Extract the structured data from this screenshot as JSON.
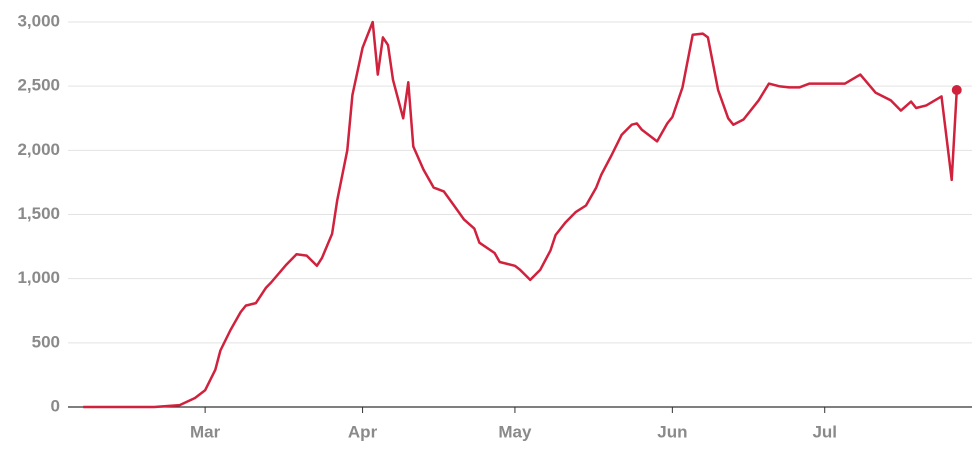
{
  "chart_data": {
    "type": "line",
    "x": [
      0,
      14,
      19,
      22,
      24,
      26,
      27,
      29,
      31,
      32,
      34,
      36,
      37,
      40,
      42,
      44,
      46,
      47,
      49,
      50,
      52,
      53,
      55,
      57,
      58,
      59,
      60,
      61,
      63,
      64,
      65,
      67,
      69,
      71,
      73,
      75,
      77,
      78,
      81,
      82,
      85,
      86,
      88,
      90,
      92,
      93,
      95,
      97,
      99,
      101,
      102,
      104,
      106,
      108,
      109,
      110,
      113,
      115,
      116,
      118,
      120,
      122,
      123,
      125,
      127,
      128,
      130,
      133,
      135,
      137,
      139,
      141,
      143,
      147,
      150,
      153,
      156,
      159,
      161,
      163,
      164,
      166,
      169,
      171,
      172
    ],
    "series": [
      {
        "color": "#d0213d",
        "values": [
          0,
          0,
          15,
          70,
          130,
          290,
          440,
          600,
          740,
          790,
          810,
          930,
          970,
          1110,
          1190,
          1180,
          1100,
          1160,
          1350,
          1610,
          2000,
          2430,
          2800,
          3000,
          2590,
          2880,
          2820,
          2550,
          2250,
          2530,
          2030,
          1850,
          1710,
          1680,
          1570,
          1460,
          1390,
          1280,
          1200,
          1130,
          1100,
          1070,
          990,
          1070,
          1220,
          1340,
          1440,
          1520,
          1570,
          1710,
          1810,
          1960,
          2120,
          2200,
          2210,
          2160,
          2070,
          2210,
          2260,
          2490,
          2900,
          2910,
          2880,
          2470,
          2250,
          2200,
          2240,
          2390,
          2520,
          2500,
          2490,
          2490,
          2520,
          2520,
          2520,
          2590,
          2450,
          2390,
          2310,
          2380,
          2330,
          2350,
          2420,
          1770,
          2470
        ]
      }
    ],
    "xlim": [
      -3,
      175
    ],
    "xticks": [
      {
        "value": 24,
        "label": "Mar"
      },
      {
        "value": 55,
        "label": "Apr"
      },
      {
        "value": 85,
        "label": "May"
      },
      {
        "value": 116,
        "label": "Jun"
      },
      {
        "value": 146,
        "label": "Jul"
      }
    ],
    "ylim": [
      0,
      3000
    ],
    "yticks": [
      0,
      500,
      {
        "value": 1000,
        "label": "1,000"
      },
      {
        "value": 1500,
        "label": "1,500"
      },
      {
        "value": 2000,
        "label": "2,000"
      },
      {
        "value": 2500,
        "label": "2,500"
      },
      {
        "value": 3000,
        "label": "3,000"
      }
    ],
    "grid": true,
    "end_marker": true
  }
}
